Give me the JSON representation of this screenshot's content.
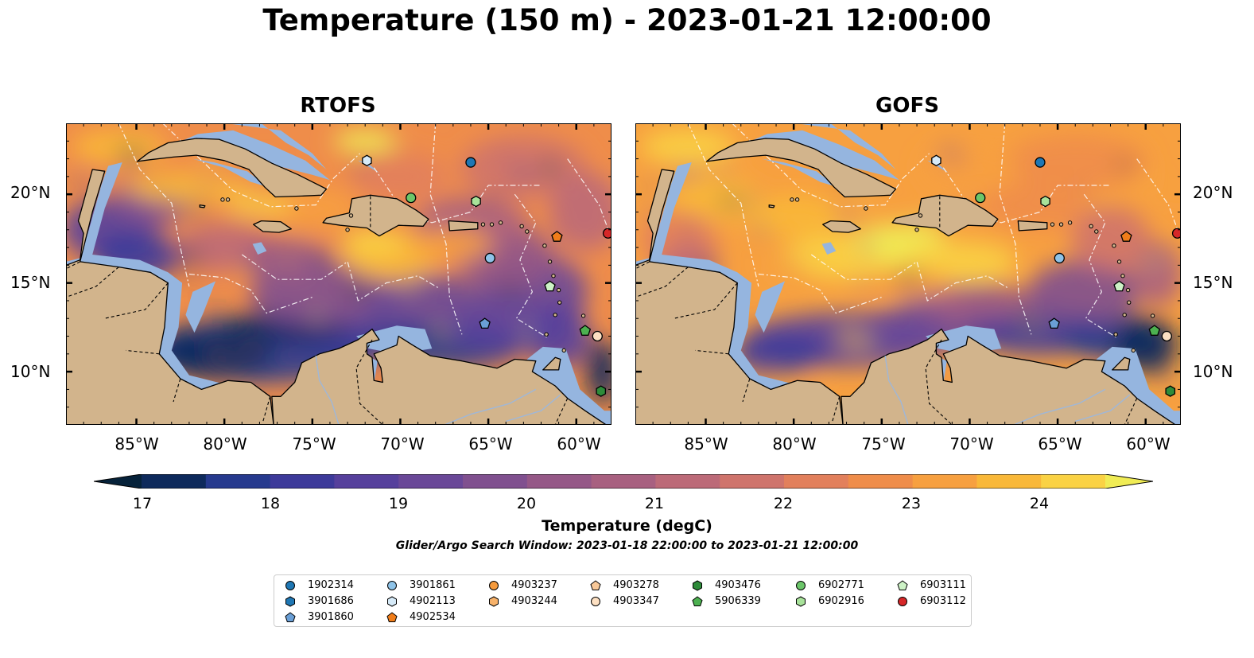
{
  "title": "Temperature (150 m) - 2023-01-21 12:00:00",
  "panels": [
    {
      "title": "RTOFS",
      "variant": "rtofs"
    },
    {
      "title": "GOFS",
      "variant": "gofs"
    }
  ],
  "lat_labels": [
    "20°N",
    "15°N",
    "10°N"
  ],
  "lon_labels": [
    "85°W",
    "80°W",
    "75°W",
    "70°W",
    "65°W",
    "60°W"
  ],
  "colorbar": {
    "label": "Temperature (degC)",
    "min": 17,
    "max": 24,
    "ticks": [
      "17",
      "18",
      "19",
      "20",
      "21",
      "22",
      "23",
      "24"
    ],
    "colors": [
      "#06223a",
      "#0e2a5c",
      "#263a8e",
      "#3d3a9a",
      "#56409c",
      "#6a4898",
      "#80508f",
      "#955887",
      "#a86080",
      "#bc6a78",
      "#cf746c",
      "#e2805c",
      "#ef8d4a",
      "#f7a040",
      "#f9b839",
      "#fad244",
      "#f0ec55"
    ]
  },
  "search_window": "Glider/Argo Search Window: 2023-01-18 22:00:00 to 2023-01-21 12:00:00",
  "colors": {
    "land": "#d2b48c",
    "shelf_water": "#95b5df",
    "pacific": "#08263a"
  },
  "floats": [
    {
      "id": "1902314",
      "marker": "circle",
      "color": "#1f77b4",
      "lon": -66.0,
      "lat": 21.8
    },
    {
      "id": "3901686",
      "marker": "hexagon",
      "color": "#1f77b4"
    },
    {
      "id": "3901860",
      "marker": "pentagon",
      "color": "#6a9fd6",
      "lon": -65.2,
      "lat": 12.7
    },
    {
      "id": "3901861",
      "marker": "circle",
      "color": "#8ec3e8",
      "lon": -64.9,
      "lat": 16.4
    },
    {
      "id": "4902113",
      "marker": "hexagon",
      "color": "#d6eaf8",
      "lon": -71.9,
      "lat": 21.9
    },
    {
      "id": "4902534",
      "marker": "pentagon",
      "color": "#f07d1a",
      "lon": -61.1,
      "lat": 17.6
    },
    {
      "id": "4903237",
      "marker": "circle",
      "color": "#f59a3c"
    },
    {
      "id": "4903244",
      "marker": "hexagon",
      "color": "#f7b26a"
    },
    {
      "id": "4903278",
      "marker": "pentagon",
      "color": "#f8c898"
    },
    {
      "id": "4903347",
      "marker": "circle",
      "color": "#fde0c2",
      "lon": -58.8,
      "lat": 12.0
    },
    {
      "id": "4903476",
      "marker": "hexagon",
      "color": "#2e8b3a",
      "lon": -58.6,
      "lat": 8.9
    },
    {
      "id": "5906339",
      "marker": "pentagon",
      "color": "#4cb050",
      "lon": -59.5,
      "lat": 12.3
    },
    {
      "id": "6902771",
      "marker": "circle",
      "color": "#6cc66a",
      "lon": -69.4,
      "lat": 19.8
    },
    {
      "id": "6902916",
      "marker": "hexagon",
      "color": "#a8e29a",
      "lon": -65.7,
      "lat": 19.6
    },
    {
      "id": "6903111",
      "marker": "pentagon",
      "color": "#cdf2c6",
      "lon": -61.5,
      "lat": 14.8
    },
    {
      "id": "6903112",
      "marker": "circle",
      "color": "#d62728",
      "lon": -58.2,
      "lat": 17.8
    }
  ]
}
